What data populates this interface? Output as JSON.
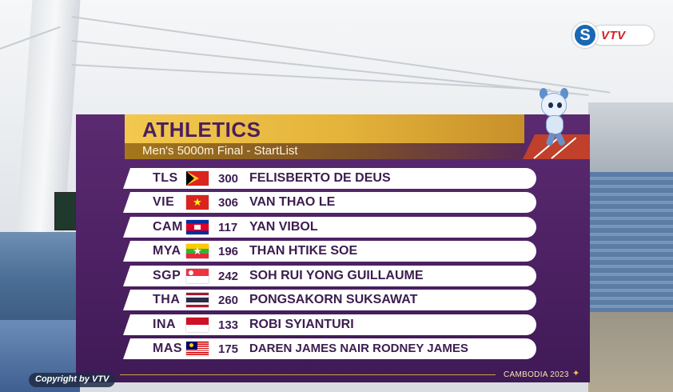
{
  "broadcaster": {
    "logo_text": "VTV",
    "circle_glyph": "S"
  },
  "event": {
    "title": "ATHLETICS",
    "subtitle": "Men's 5000m Final - StartList"
  },
  "start_list": [
    {
      "code": "TLS",
      "flag": "timor-leste-flag",
      "bib": "300",
      "name": "FELISBERTO DE DEUS"
    },
    {
      "code": "VIE",
      "flag": "vietnam-flag",
      "bib": "306",
      "name": "VAN THAO LE"
    },
    {
      "code": "CAM",
      "flag": "cambodia-flag",
      "bib": "117",
      "name": "YAN VIBOL"
    },
    {
      "code": "MYA",
      "flag": "myanmar-flag",
      "bib": "196",
      "name": "THAN HTIKE SOE"
    },
    {
      "code": "SGP",
      "flag": "singapore-flag",
      "bib": "242",
      "name": "SOH RUI YONG GUILLAUME"
    },
    {
      "code": "THA",
      "flag": "thailand-flag",
      "bib": "260",
      "name": "PONGSAKORN SUKSAWAT"
    },
    {
      "code": "INA",
      "flag": "indonesia-flag",
      "bib": "133",
      "name": "ROBI SYIANTURI"
    },
    {
      "code": "MAS",
      "flag": "malaysia-flag",
      "bib": "175",
      "name": "DAREN JAMES NAIR RODNEY JAMES"
    }
  ],
  "footer": {
    "games": "CAMBODIA 2023",
    "star": "✦",
    "copyright": "Copyright by VTV"
  },
  "colors": {
    "panel_purple": "#4b2062",
    "header_gold": "#f3c84e",
    "row_text": "#3c1d4f",
    "logo_red": "#d41f26",
    "logo_blue": "#1a67b3"
  }
}
